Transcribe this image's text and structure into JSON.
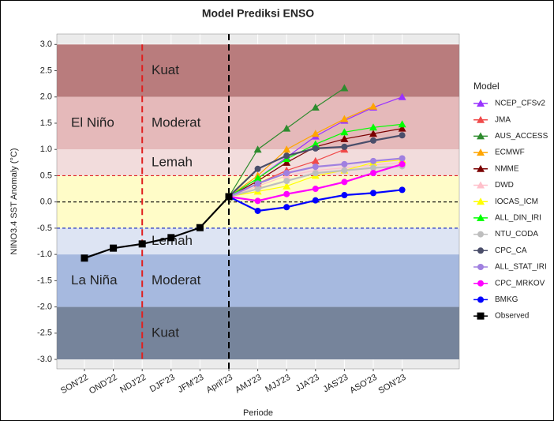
{
  "chart_data": {
    "type": "line",
    "title": "Model Prediksi ENSO",
    "x_label": "Periode",
    "y_label": "NINO3.4 SST Anomaly (°C)",
    "categories": [
      "SON'22",
      "OND'22",
      "NDJ'22",
      "DJF'23",
      "JFM'23",
      "April'23",
      "AMJ'23",
      "MJJ'23",
      "JJA'23",
      "JAS'23",
      "ASO'23",
      "SON'23"
    ],
    "ylim": [
      -3.18,
      3.2
    ],
    "yticks": [
      {
        "value": 3,
        "label": "3.0"
      },
      2.5,
      {
        "value": 2,
        "label": "2.0"
      },
      1.5,
      {
        "value": 1,
        "label": "1.0"
      },
      0.5,
      {
        "value": 0,
        "label": "0.0"
      },
      -0.5,
      {
        "value": -1,
        "label": "-1.0"
      },
      -1.5,
      {
        "value": -2,
        "label": "-2.0"
      },
      -2.5,
      {
        "value": -3,
        "label": "-3.0"
      }
    ],
    "grid": true,
    "bands": [
      {
        "from": 2,
        "to": 3,
        "color": "#b97c7d"
      },
      {
        "from": 1,
        "to": 2,
        "color": "#e5b9ba"
      },
      {
        "from": 0.5,
        "to": 1,
        "color": "#f2dcdc"
      },
      {
        "from": -0.5,
        "to": 0.5,
        "color": "#fffcc8"
      },
      {
        "from": -1,
        "to": -0.5,
        "color": "#dde4f3"
      },
      {
        "from": -2,
        "to": -1,
        "color": "#a6b9df"
      },
      {
        "from": -3,
        "to": -2,
        "color": "#76849b"
      }
    ],
    "hlines": [
      {
        "y": 0.5,
        "color": "#e02020"
      },
      {
        "y": 0,
        "color": "#000000"
      },
      {
        "y": -0.5,
        "color": "#2030c0"
      }
    ],
    "vlines": [
      {
        "x": 2,
        "color": "#e02020"
      },
      {
        "x": 5,
        "color": "#000000"
      }
    ],
    "annotations": [
      "Kuat",
      "El Niño",
      "Moderat",
      "Lemah",
      "Lemah",
      "La Niña",
      "Moderat",
      "Kuat"
    ],
    "legend_title": "Model",
    "legend": "right",
    "series": [
      {
        "name": "NCEP_CFSv2",
        "color": "#9933ff",
        "marker": "triangle",
        "values": [
          null,
          null,
          null,
          null,
          null,
          0.1,
          0.45,
          0.85,
          1.25,
          1.55,
          1.8,
          2.0
        ]
      },
      {
        "name": "JMA",
        "color": "#f04a4a",
        "marker": "triangle",
        "values": [
          null,
          null,
          null,
          null,
          null,
          0.1,
          0.35,
          0.6,
          0.78,
          1.0,
          null,
          null
        ]
      },
      {
        "name": "AUS_ACCESS",
        "color": "#2e8b2e",
        "marker": "triangle",
        "values": [
          null,
          null,
          null,
          null,
          null,
          0.1,
          1.0,
          1.4,
          1.8,
          2.17,
          null,
          null
        ]
      },
      {
        "name": "ECMWF",
        "color": "#ffa500",
        "marker": "triangle",
        "values": [
          null,
          null,
          null,
          null,
          null,
          0.1,
          0.5,
          1.0,
          1.3,
          1.58,
          1.82,
          null
        ]
      },
      {
        "name": "NMME",
        "color": "#7a0000",
        "marker": "triangle",
        "values": [
          null,
          null,
          null,
          null,
          null,
          0.1,
          0.4,
          0.75,
          1.05,
          1.2,
          1.3,
          1.4
        ]
      },
      {
        "name": "DWD",
        "color": "#ffc0cb",
        "marker": "triangle",
        "values": [
          null,
          null,
          null,
          null,
          null,
          0.1,
          0.3,
          0.5,
          0.6,
          0.65,
          0.7,
          0.75
        ]
      },
      {
        "name": "IOCAS_ICM",
        "color": "#ffff00",
        "marker": "triangle",
        "values": [
          null,
          null,
          null,
          null,
          null,
          0.1,
          0.2,
          0.3,
          0.5,
          0.6,
          0.75,
          0.8
        ]
      },
      {
        "name": "ALL_DIN_IRI",
        "color": "#00ff00",
        "marker": "triangle",
        "values": [
          null,
          null,
          null,
          null,
          null,
          0.1,
          0.45,
          0.82,
          1.1,
          1.33,
          1.42,
          1.48
        ]
      },
      {
        "name": "NTU_CODA",
        "color": "#bebebe",
        "marker": "circle",
        "values": [
          null,
          null,
          null,
          null,
          null,
          0.1,
          0.25,
          0.4,
          0.55,
          0.6,
          0.65,
          0.68
        ]
      },
      {
        "name": "CPC_CA",
        "color": "#4a4e6a",
        "marker": "circle",
        "values": [
          null,
          null,
          null,
          null,
          null,
          0.1,
          0.63,
          0.88,
          1.02,
          1.05,
          1.17,
          1.27
        ]
      },
      {
        "name": "ALL_STAT_IRI",
        "color": "#a080e0",
        "marker": "circle",
        "values": [
          null,
          null,
          null,
          null,
          null,
          0.1,
          0.35,
          0.55,
          0.67,
          0.72,
          0.78,
          0.83
        ]
      },
      {
        "name": "CPC_MRKOV",
        "color": "#ff00ff",
        "marker": "circle",
        "values": [
          null,
          null,
          null,
          null,
          null,
          0.1,
          0.02,
          0.15,
          0.25,
          0.38,
          0.55,
          0.72
        ]
      },
      {
        "name": "BMKG",
        "color": "#0000ff",
        "marker": "circle",
        "values": [
          null,
          null,
          null,
          null,
          null,
          0.1,
          -0.17,
          -0.1,
          0.03,
          0.13,
          0.17,
          0.23
        ]
      },
      {
        "name": "Observed",
        "color": "#000000",
        "marker": "square",
        "values": [
          -1.07,
          -0.88,
          -0.8,
          -0.68,
          -0.49,
          0.1,
          null,
          null,
          null,
          null,
          null,
          null
        ]
      }
    ]
  }
}
